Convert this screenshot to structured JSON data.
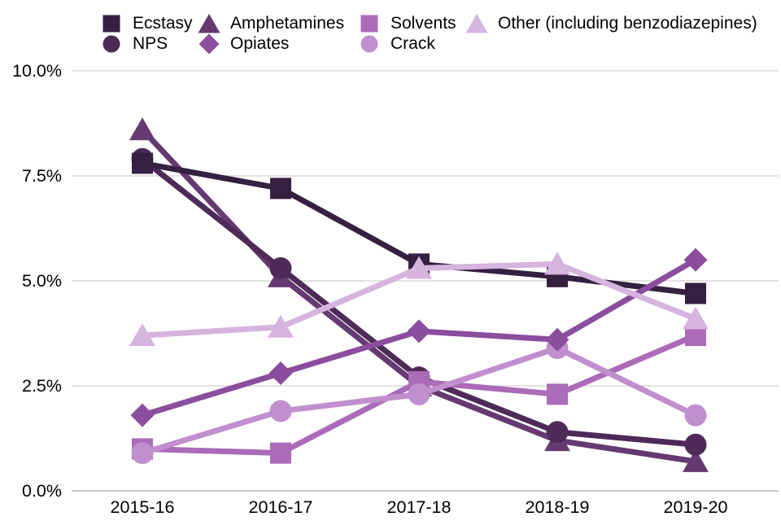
{
  "chart_data": {
    "type": "line",
    "title": "",
    "xlabel": "",
    "ylabel": "",
    "value_format": "percent",
    "categories": [
      "2015-16",
      "2016-17",
      "2017-18",
      "2018-19",
      "2019-20"
    ],
    "y_ticks": [
      {
        "label": "10.0%",
        "value": 10
      },
      {
        "label": "7.5%",
        "value": 7.5
      },
      {
        "label": "5.0%",
        "value": 5
      },
      {
        "label": "2.5%",
        "value": 2.5
      },
      {
        "label": "0.0%",
        "value": 0
      }
    ],
    "ylim": [
      0,
      10
    ],
    "grid": true,
    "legend_position": "top",
    "series": [
      {
        "name": "Amphetamines",
        "marker": "triangle",
        "color": "#653a72",
        "values": [
          8.6,
          5.1,
          2.5,
          1.2,
          0.7
        ]
      },
      {
        "name": "NPS",
        "marker": "circle",
        "color": "#4d2a57",
        "values": [
          7.9,
          5.3,
          2.7,
          1.4,
          1.1
        ]
      },
      {
        "name": "Ecstasy",
        "marker": "square",
        "color": "#362040",
        "values": [
          7.8,
          7.2,
          5.4,
          5.1,
          4.7
        ]
      },
      {
        "name": "Solvents",
        "marker": "square",
        "color": "#ab6bb8",
        "values": [
          1.0,
          0.9,
          2.6,
          2.3,
          3.7
        ]
      },
      {
        "name": "Crack",
        "marker": "circle",
        "color": "#c08fcd",
        "values": [
          0.9,
          1.9,
          2.3,
          3.4,
          1.8
        ]
      },
      {
        "name": "Opiates",
        "marker": "diamond",
        "color": "#8b4d9e",
        "values": [
          1.8,
          2.8,
          3.8,
          3.6,
          5.5
        ]
      },
      {
        "name": "Other (including benzodiazepines)",
        "marker": "triangle",
        "color": "#d5b4de",
        "values": [
          3.7,
          3.9,
          5.3,
          5.4,
          4.1
        ]
      }
    ],
    "legend_rows": [
      [
        "Ecstasy",
        "Amphetamines",
        "Solvents",
        "Other (including benzodiazepines)"
      ],
      [
        "NPS",
        "Opiates",
        "Crack"
      ]
    ],
    "colors": {
      "gridline": "#d9d9d9",
      "axis_line": "#c6c6c6",
      "text": "#000000"
    }
  }
}
